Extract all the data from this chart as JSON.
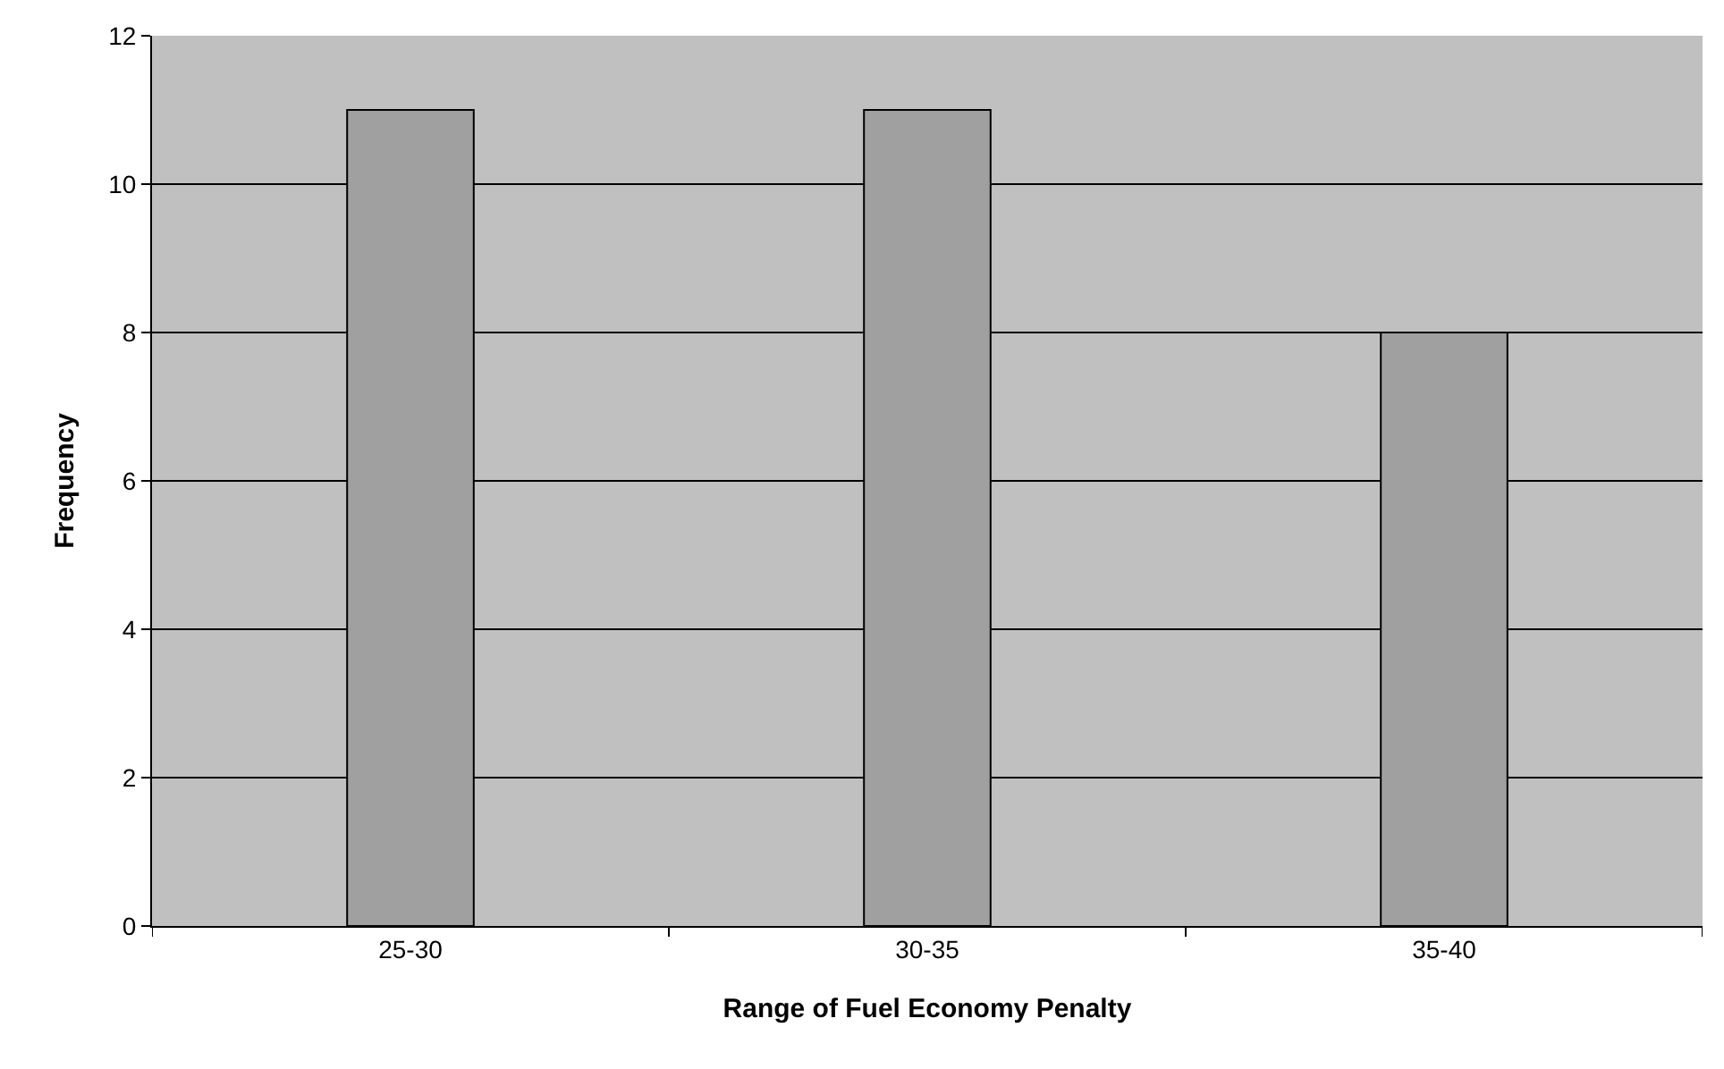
{
  "chart_data": {
    "type": "bar",
    "xlabel": "Range of Fuel Economy Penalty",
    "ylabel": "Frequency",
    "categories": [
      "25-30",
      "30-35",
      "35-40"
    ],
    "values": [
      11,
      11,
      8
    ],
    "color": "#a0a0a0",
    "ylim": [
      0,
      12
    ],
    "yticks": [
      0,
      2,
      4,
      6,
      8,
      10,
      12
    ],
    "grid": "y"
  }
}
